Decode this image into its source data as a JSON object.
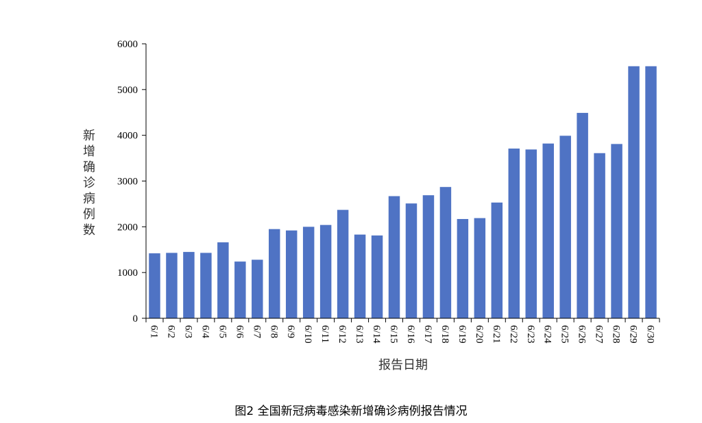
{
  "caption": "图2 全国新冠病毒感染新增确诊病例报告情况",
  "chart_data": {
    "type": "bar",
    "xlabel": "报告日期",
    "ylabel": "新增确诊病例数",
    "ylim": [
      0,
      6000
    ],
    "yticks": [
      0,
      1000,
      2000,
      3000,
      4000,
      5000,
      6000
    ],
    "grid": false,
    "bar_color": "#4F73C4",
    "categories": [
      "6/1",
      "6/2",
      "6/3",
      "6/4",
      "6/5",
      "6/6",
      "6/7",
      "6/8",
      "6/9",
      "6/10",
      "6/11",
      "6/12",
      "6/13",
      "6/14",
      "6/15",
      "6/16",
      "6/17",
      "6/18",
      "6/19",
      "6/20",
      "6/21",
      "6/22",
      "6/23",
      "6/24",
      "6/25",
      "6/26",
      "6/27",
      "6/28",
      "6/29",
      "6/30"
    ],
    "values": [
      1420,
      1430,
      1450,
      1430,
      1660,
      1240,
      1280,
      1950,
      1920,
      2000,
      2040,
      2370,
      1830,
      1810,
      2670,
      2510,
      2690,
      2870,
      2170,
      2190,
      2530,
      3710,
      3690,
      3820,
      3990,
      4490,
      3610,
      3810,
      5510,
      5510
    ]
  }
}
